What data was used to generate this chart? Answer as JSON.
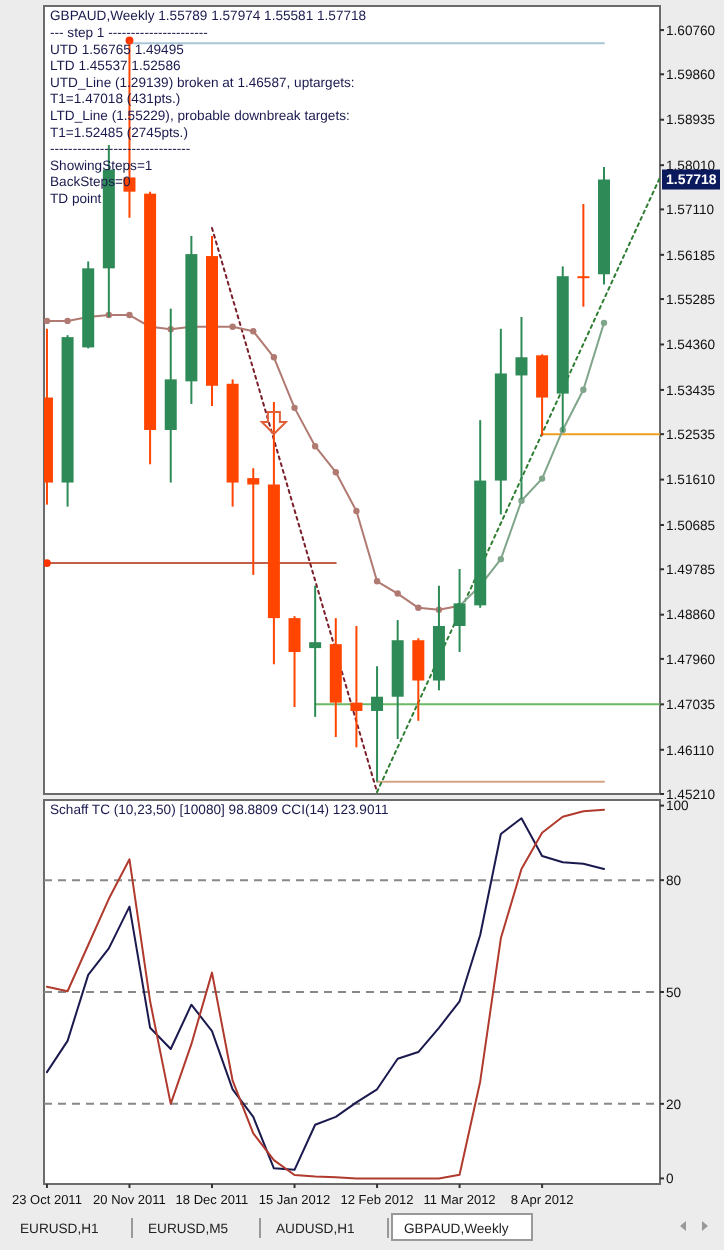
{
  "chart_data": [
    {
      "type": "candlestick",
      "title": "GBPAUD,Weekly  1.55789 1.57974 1.55581 1.57718",
      "annotations": [
        "---   step 1 ----------------------",
        "UTD 1.56765 1.49495",
        "LTD  1.45537 1.52586",
        "UTD_Line (1.29139) broken at 1.46587, uptargets:",
        "T1=1.47018 (431pts.)",
        "LTD_Line (1.55229), probable downbreak targets:",
        "T1=1.52485 (2745pts.)",
        "-------------------------------",
        "ShowingSteps=1",
        "BackSteps=0",
        "TD point",
        {
          "text": "1.57718",
          "y": 1.57718
        }
      ],
      "x": [
        "2011-10-23",
        "2011-10-30",
        "2011-11-06",
        "2011-11-13",
        "2011-11-20",
        "2011-11-27",
        "2011-12-04",
        "2011-12-11",
        "2011-12-18",
        "2011-12-25",
        "2012-01-01",
        "2012-01-08",
        "2012-01-15",
        "2012-01-22",
        "2012-01-29",
        "2012-02-05",
        "2012-02-12",
        "2012-02-19",
        "2012-02-26",
        "2012-03-04",
        "2012-03-11",
        "2012-03-18",
        "2012-03-25",
        "2012-04-01",
        "2012-04-08",
        "2012-04-15",
        "2012-04-22",
        "2012-04-29"
      ],
      "xlim": [
        "2011-10-22",
        "2012-05-18"
      ],
      "ylim": [
        1.4521,
        1.6125
      ],
      "tick_labels": "y",
      "yticks": [
        {
          "value": 1.6076,
          "label": "1.60760"
        },
        {
          "value": 1.5986,
          "label": "1.59860"
        },
        1.58935,
        {
          "value": 1.5801,
          "label": "1.58010"
        },
        {
          "value": 1.5711,
          "label": "1.57110"
        },
        1.56185,
        1.55285,
        {
          "value": 1.5436,
          "label": "1.54360"
        },
        1.53435,
        1.52535,
        {
          "value": 1.5161,
          "label": "1.51610"
        },
        1.50685,
        1.49785,
        {
          "value": 1.4886,
          "label": "1.48860"
        },
        {
          "value": 1.4796,
          "label": "1.47960"
        },
        1.47035,
        {
          "value": 1.4611,
          "label": "1.46110"
        },
        {
          "value": 1.4521,
          "label": "1.45210"
        }
      ],
      "series": [
        {
          "type": "line",
          "x": [
            "2011-11-20",
            "2012-04-29"
          ],
          "values": [
            1.6049,
            1.6049
          ],
          "color": "#a9c6d6"
        },
        {
          "type": "line",
          "x": [
            "2011-10-23",
            "2012-01-29"
          ],
          "values": [
            1.4991,
            1.4991
          ],
          "color": "#c0604a"
        },
        {
          "type": "line",
          "x": [
            "2012-01-22",
            "2012-05-18"
          ],
          "values": [
            1.47035,
            1.47035
          ],
          "color": "#6cb865"
        },
        {
          "type": "line",
          "x": [
            "2012-04-08",
            "2012-05-18"
          ],
          "values": [
            1.52535,
            1.52535
          ],
          "color": "#f0a020"
        },
        {
          "type": "line",
          "x": [
            "2012-02-12",
            "2012-04-29"
          ],
          "values": [
            1.4546,
            1.4546
          ],
          "color": "#d4a584"
        },
        {
          "type": "line",
          "x": [
            "2011-12-18",
            "2012-02-12"
          ],
          "values": [
            1.5673,
            1.4525
          ],
          "color": "#7a1f2a",
          "line_style": "dotted"
        },
        {
          "type": "line",
          "x": [
            "2012-02-12",
            "2012-05-18"
          ],
          "values": [
            1.4525,
            1.5776
          ],
          "color": "#2e7d32",
          "line_style": "dotted"
        },
        {
          "type": "line",
          "x": [
            "2011-10-23",
            "2011-10-30",
            "2011-11-06",
            "2011-11-13",
            "2011-11-20",
            "2011-11-27",
            "2011-12-04",
            "2011-12-11",
            "2011-12-18",
            "2011-12-25",
            "2012-01-01",
            "2012-01-08",
            "2012-01-15",
            "2012-01-22",
            "2012-01-29",
            "2012-02-05",
            "2012-02-12",
            "2012-02-19",
            "2012-02-26",
            "2012-03-04",
            "2012-03-11"
          ],
          "values": [
            1.5484,
            1.5484,
            1.5492,
            1.5496,
            1.5496,
            1.5472,
            1.5467,
            1.5472,
            1.5472,
            1.5472,
            1.5463,
            1.541,
            1.5307,
            1.5229,
            1.5176,
            1.5097,
            1.4954,
            1.4929,
            1.49,
            1.4896,
            1.4904
          ],
          "color": "#b07a72",
          "marker": "circle"
        },
        {
          "type": "line",
          "x": [
            "2012-03-11",
            "2012-03-18",
            "2012-03-25",
            "2012-04-01",
            "2012-04-08",
            "2012-04-15",
            "2012-04-22",
            "2012-04-29"
          ],
          "values": [
            1.4904,
            1.4945,
            1.4999,
            1.5118,
            1.5163,
            1.5262,
            1.5344,
            1.548
          ],
          "color": "#7fa58a",
          "marker": "circle"
        },
        {
          "type": "scatter",
          "x": [
            "2011-11-20",
            "2011-10-23"
          ],
          "values": [
            1.6055,
            1.4991
          ],
          "color": "#ff3300",
          "marker": "circle"
        },
        {
          "ohlc": [
            [
              1.5328,
              1.5468,
              1.511,
              1.5155
            ],
            [
              1.5155,
              1.5455,
              1.5106,
              1.5451
            ],
            [
              1.543,
              1.5605,
              1.5428,
              1.5591
            ],
            [
              1.5591,
              1.5842,
              1.5492,
              1.5792
            ],
            [
              1.5776,
              1.6055,
              1.5694,
              1.5747
            ],
            [
              1.5743,
              1.5747,
              1.5192,
              1.5262
            ],
            [
              1.5262,
              1.5509,
              1.5155,
              1.5365
            ],
            [
              1.5361,
              1.5657,
              1.5315,
              1.562
            ],
            [
              1.5616,
              1.5657,
              1.5311,
              1.5352
            ],
            [
              1.5356,
              1.5365,
              1.5106,
              1.5155
            ],
            [
              1.5164,
              1.5184,
              1.4967,
              1.5151
            ],
            [
              1.5151,
              1.5319,
              1.4785,
              1.4879
            ],
            [
              1.4879,
              1.4883,
              1.4698,
              1.481
            ],
            [
              1.4818,
              1.4945,
              1.4678,
              1.483
            ],
            [
              1.4826,
              1.4879,
              1.4637,
              1.4707
            ],
            [
              1.4707,
              1.4863,
              1.4616,
              1.469
            ],
            [
              1.469,
              1.4781,
              1.4546,
              1.4719
            ],
            [
              1.4719,
              1.4875,
              1.4633,
              1.4834
            ],
            [
              1.4834,
              1.4838,
              1.467,
              1.4752
            ],
            [
              1.4752,
              1.4945,
              1.4732,
              1.4863
            ],
            [
              1.4863,
              1.4979,
              1.481,
              1.4909
            ],
            [
              1.4905,
              1.5282,
              1.49,
              1.5159
            ],
            [
              1.5159,
              1.5468,
              1.509,
              1.5377
            ],
            [
              1.5373,
              1.5492,
              1.5122,
              1.541
            ],
            [
              1.5414,
              1.5416,
              1.525,
              1.5328
            ],
            [
              1.5336,
              1.5595,
              1.5258,
              1.5575
            ],
            [
              1.5575,
              1.5722,
              1.5513,
              1.5571
            ],
            [
              1.55789,
              1.57974,
              1.55581,
              1.57718
            ]
          ],
          "colors": [
            "#ff4500",
            "#2e8b57",
            "#2e8b57",
            "#2e8b57",
            "#ff4500",
            "#ff4500",
            "#2e8b57",
            "#2e8b57",
            "#ff4500",
            "#ff4500",
            "#ff4500",
            "#ff4500",
            "#ff4500",
            "#2e8b57",
            "#ff4500",
            "#ff4500",
            "#2e8b57",
            "#2e8b57",
            "#ff4500",
            "#2e8b57",
            "#2e8b57",
            "#2e8b57",
            "#2e8b57",
            "#2e8b57",
            "#ff4500",
            "#2e8b57",
            "#ff4500",
            "#2e8b57"
          ]
        }
      ]
    },
    {
      "type": "line",
      "title": "Schaff TC (10,23,50) [10080] 98.8809  CCI(14) 123.9011",
      "annotations": [
        "EURUSD,H1",
        "EURUSD,M5",
        "AUDUSD,H1",
        "GBPAUD,Weekly"
      ],
      "x": [
        "2011-10-23",
        "2011-10-30",
        "2011-11-06",
        "2011-11-13",
        "2011-11-20",
        "2011-11-27",
        "2011-12-04",
        "2011-12-11",
        "2011-12-18",
        "2011-12-25",
        "2012-01-01",
        "2012-01-08",
        "2012-01-15",
        "2012-01-22",
        "2012-01-29",
        "2012-02-05",
        "2012-02-12",
        "2012-02-19",
        "2012-02-26",
        "2012-03-04",
        "2012-03-11",
        "2012-03-18",
        "2012-03-25",
        "2012-04-01",
        "2012-04-08",
        "2012-04-15",
        "2012-04-22",
        "2012-04-29"
      ],
      "xlim": [
        "2011-10-22",
        "2012-05-18"
      ],
      "xticks": [
        {
          "value": "2011-10-23",
          "label": "23 Oct 2011"
        },
        {
          "value": "2011-11-20",
          "label": "20 Nov 2011"
        },
        {
          "value": "2011-12-18",
          "label": "18 Dec 2011"
        },
        {
          "value": "2012-01-15",
          "label": "15 Jan 2012"
        },
        {
          "value": "2012-02-12",
          "label": "12 Feb 2012"
        },
        {
          "value": "2012-03-11",
          "label": "11 Mar 2012"
        },
        {
          "value": "2012-04-08",
          "label": "8 Apr 2012"
        }
      ],
      "ylim": [
        -1.5,
        101.5
      ],
      "yticks": [
        0,
        20,
        50,
        80,
        100
      ],
      "ref_lines": [
        {
          "axis": "y",
          "value": 20,
          "color": "#888888",
          "line_style": "dashed"
        },
        {
          "axis": "y",
          "value": 50,
          "color": "#888888",
          "line_style": "dashed"
        },
        {
          "axis": "y",
          "value": 80,
          "color": "#888888",
          "line_style": "dashed"
        }
      ],
      "series": [
        {
          "color": "#1a1a4e",
          "values": [
            28.5,
            36.9,
            54.6,
            61.7,
            72.9,
            40.4,
            34.7,
            46.6,
            39.5,
            23.9,
            16.5,
            2.7,
            2.3,
            14.4,
            16.5,
            20.4,
            23.9,
            32.1,
            33.9,
            40.4,
            47.5,
            65.3,
            92.4,
            96.6,
            86.5,
            84.8,
            84.4,
            83.0
          ]
        },
        {
          "color": "#b03a2e",
          "values": [
            51.4,
            50.2,
            62.6,
            75.0,
            85.6,
            47.5,
            20.0,
            36.0,
            55.2,
            26.2,
            12.1,
            4.9,
            0.9,
            0.5,
            0.3,
            0,
            0,
            0,
            0,
            0,
            1,
            26,
            64.4,
            83.0,
            92.7,
            97.0,
            98.5,
            98.9
          ]
        }
      ]
    }
  ]
}
